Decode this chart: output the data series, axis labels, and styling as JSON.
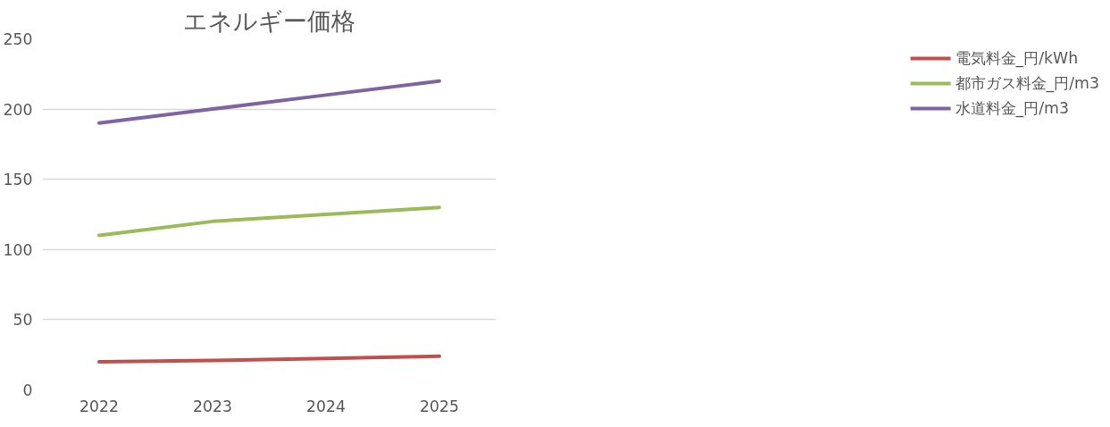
{
  "chart_data": {
    "type": "line",
    "title": "エネルギー価格",
    "x": [
      2022,
      2023,
      2024,
      2025
    ],
    "xlim": [
      2021.5,
      2025.5
    ],
    "xticks": [
      2022,
      2023,
      2024,
      2025
    ],
    "ylim": [
      0,
      250
    ],
    "yticks": [
      0,
      50,
      100,
      150,
      200,
      250
    ],
    "grid": "y",
    "legend": "right",
    "line_style": "solid",
    "marker": "none",
    "series": [
      {
        "name": "電気料金_円/kWh",
        "color": "#c0504d",
        "values": [
          20,
          21,
          22.5,
          24
        ]
      },
      {
        "name": "都市ガス料金_円/m3",
        "color": "#9bbb59",
        "values": [
          110,
          120,
          125,
          130
        ]
      },
      {
        "name": "水道料金_円/m3",
        "color": "#8064a2",
        "values": [
          190,
          200,
          210,
          220
        ]
      }
    ]
  }
}
